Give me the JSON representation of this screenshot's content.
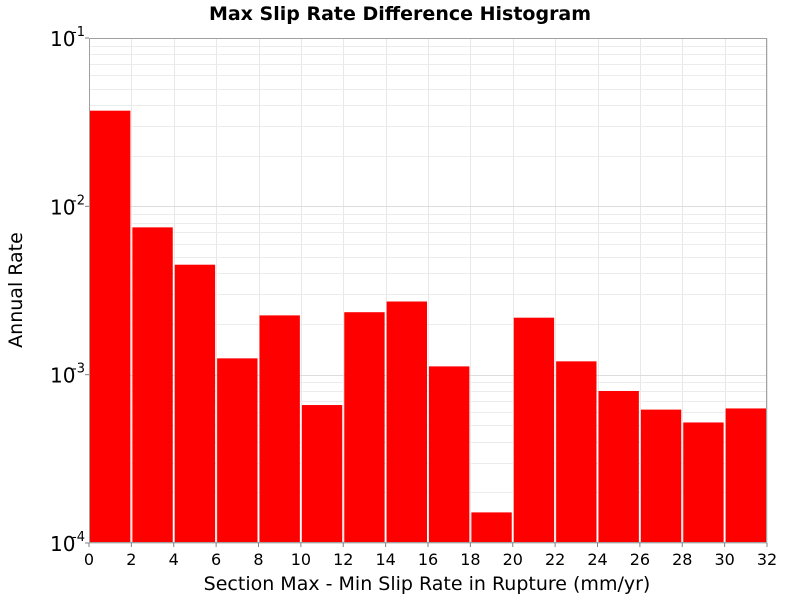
{
  "chart_data": {
    "type": "bar",
    "title": "Max Slip Rate Difference Histogram",
    "xlabel": "Section Max - Min Slip Rate in Rupture (mm/yr)",
    "ylabel": "Annual Rate",
    "xlim": [
      0,
      32
    ],
    "ylim": [
      0.0001,
      0.1
    ],
    "yscale": "log",
    "grid": true,
    "bar_color": "#ff0000",
    "bin_width": 2,
    "x_ticks": [
      "0",
      "2",
      "4",
      "6",
      "8",
      "10",
      "12",
      "14",
      "16",
      "18",
      "20",
      "22",
      "24",
      "26",
      "28",
      "30",
      "32"
    ],
    "y_ticks": [
      {
        "base": "10",
        "exp": "-4",
        "value": 0.0001
      },
      {
        "base": "10",
        "exp": "-3",
        "value": 0.001
      },
      {
        "base": "10",
        "exp": "-2",
        "value": 0.01
      },
      {
        "base": "10",
        "exp": "-1",
        "value": 0.1
      }
    ],
    "bins": [
      {
        "x0": 0,
        "x1": 2,
        "value": 0.037
      },
      {
        "x0": 2,
        "x1": 4,
        "value": 0.0075
      },
      {
        "x0": 4,
        "x1": 6,
        "value": 0.0045
      },
      {
        "x0": 6,
        "x1": 8,
        "value": 0.00125
      },
      {
        "x0": 8,
        "x1": 10,
        "value": 0.00225
      },
      {
        "x0": 10,
        "x1": 12,
        "value": 0.00066
      },
      {
        "x0": 12,
        "x1": 14,
        "value": 0.00235
      },
      {
        "x0": 14,
        "x1": 16,
        "value": 0.00272
      },
      {
        "x0": 16,
        "x1": 18,
        "value": 0.00112
      },
      {
        "x0": 18,
        "x1": 20,
        "value": 0.000152
      },
      {
        "x0": 20,
        "x1": 22,
        "value": 0.00218
      },
      {
        "x0": 22,
        "x1": 24,
        "value": 0.0012
      },
      {
        "x0": 24,
        "x1": 26,
        "value": 0.0008
      },
      {
        "x0": 26,
        "x1": 28,
        "value": 0.00062
      },
      {
        "x0": 28,
        "x1": 30,
        "value": 0.00052
      },
      {
        "x0": 30,
        "x1": 32,
        "value": 0.00063
      }
    ]
  }
}
